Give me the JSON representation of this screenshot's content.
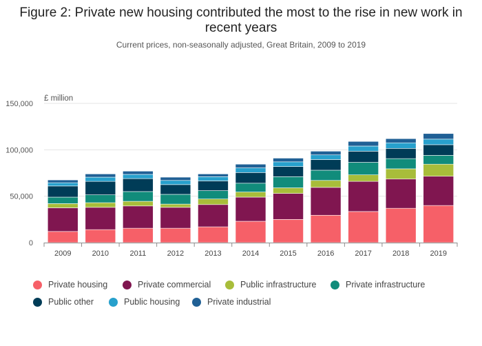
{
  "colors": {
    "private_housing": "#f66068",
    "private_commercial": "#801650",
    "public_infrastructure": "#a8bd3a",
    "private_infrastructure": "#118c7b",
    "public_other": "#003c57",
    "public_housing": "#27a0cc",
    "private_industrial": "#206095"
  },
  "chart_data": {
    "type": "bar",
    "stacked": true,
    "title": "Figure 2: Private new housing contributed the most to the rise in new work in recent years",
    "subtitle": "Current prices, non-seasonally adjusted, Great Britain, 2009 to 2019",
    "ylabel": "£ million",
    "ylim": [
      0,
      150000
    ],
    "yticks": [
      "0",
      "50,000",
      "100,000",
      "150,000"
    ],
    "grid": true,
    "legend_placement": "bottom",
    "categories": [
      "2009",
      "2010",
      "2011",
      "2012",
      "2013",
      "2014",
      "2015",
      "2016",
      "2017",
      "2018",
      "2019"
    ],
    "series": [
      {
        "name": "Private housing",
        "color_key": "private_housing",
        "values": [
          12000,
          14000,
          15500,
          15500,
          17000,
          23000,
          25000,
          29500,
          33500,
          37000,
          40000
        ]
      },
      {
        "name": "Private commercial",
        "color_key": "private_commercial",
        "values": [
          25500,
          24000,
          24000,
          22500,
          24000,
          26000,
          28000,
          30000,
          32500,
          31500,
          31500
        ]
      },
      {
        "name": "Public infrastructure",
        "color_key": "public_infrastructure",
        "values": [
          4500,
          5000,
          5000,
          3500,
          6000,
          5500,
          6000,
          7500,
          7000,
          11000,
          13000
        ]
      },
      {
        "name": "Private infrastructure",
        "color_key": "private_infrastructure",
        "values": [
          7000,
          8500,
          10500,
          10500,
          9000,
          9500,
          12000,
          11000,
          13500,
          11000,
          9500
        ]
      },
      {
        "name": "Public other",
        "color_key": "public_other",
        "values": [
          12000,
          14500,
          14000,
          10500,
          10500,
          11500,
          11000,
          11500,
          12000,
          11000,
          11500
        ]
      },
      {
        "name": "Public housing",
        "color_key": "public_housing",
        "values": [
          3500,
          4500,
          4500,
          4500,
          4500,
          5000,
          5000,
          5000,
          5500,
          6000,
          6000
        ]
      },
      {
        "name": "Private industrial",
        "color_key": "private_industrial",
        "values": [
          3000,
          3500,
          3500,
          3500,
          3000,
          4000,
          4000,
          4000,
          5000,
          4500,
          6000
        ]
      }
    ]
  }
}
